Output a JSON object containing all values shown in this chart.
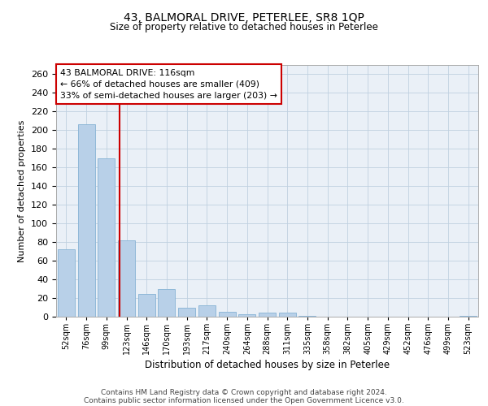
{
  "title1": "43, BALMORAL DRIVE, PETERLEE, SR8 1QP",
  "title2": "Size of property relative to detached houses in Peterlee",
  "xlabel": "Distribution of detached houses by size in Peterlee",
  "ylabel": "Number of detached properties",
  "categories": [
    "52sqm",
    "76sqm",
    "99sqm",
    "123sqm",
    "146sqm",
    "170sqm",
    "193sqm",
    "217sqm",
    "240sqm",
    "264sqm",
    "288sqm",
    "311sqm",
    "335sqm",
    "358sqm",
    "382sqm",
    "405sqm",
    "429sqm",
    "452sqm",
    "476sqm",
    "499sqm",
    "523sqm"
  ],
  "values": [
    72,
    206,
    170,
    82,
    24,
    30,
    10,
    12,
    5,
    3,
    4,
    4,
    1,
    0,
    0,
    0,
    0,
    0,
    0,
    0,
    1
  ],
  "bar_color": "#b8d0e8",
  "bar_edge_color": "#90b8d8",
  "vline_color": "#cc0000",
  "vline_pos": 2.67,
  "annotation_text": "43 BALMORAL DRIVE: 116sqm\n← 66% of detached houses are smaller (409)\n33% of semi-detached houses are larger (203) →",
  "annotation_box_edge": "#cc0000",
  "ylim": [
    0,
    270
  ],
  "yticks": [
    0,
    20,
    40,
    60,
    80,
    100,
    120,
    140,
    160,
    180,
    200,
    220,
    240,
    260
  ],
  "footer1": "Contains HM Land Registry data © Crown copyright and database right 2024.",
  "footer2": "Contains public sector information licensed under the Open Government Licence v3.0.",
  "background_color": "#eaf0f7",
  "grid_color": "#c0d0e0"
}
